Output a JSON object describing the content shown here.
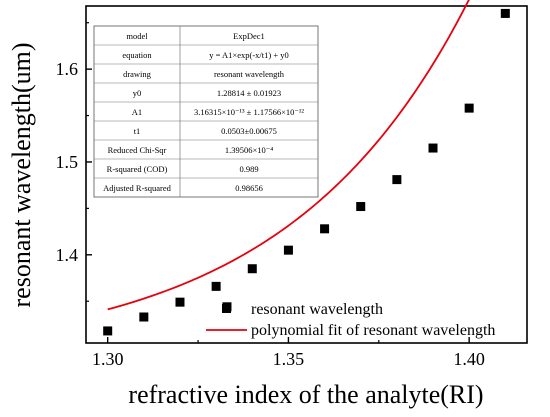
{
  "chart_data": {
    "type": "scatter",
    "xlabel": "refractive index of the analyte(RI)",
    "ylabel": "resonant wavelength(um)",
    "xlim": [
      1.294,
      1.416
    ],
    "ylim": [
      1.305,
      1.668
    ],
    "x_ticks": [
      "1.30",
      "1.35",
      "1.40"
    ],
    "y_ticks": [
      "1.4",
      "1.5",
      "1.6"
    ],
    "x_tick_values": [
      1.3,
      1.35,
      1.4
    ],
    "y_tick_values": [
      1.4,
      1.5,
      1.6
    ],
    "series": [
      {
        "name": "resonant wavelength",
        "kind": "scatter",
        "marker": "square",
        "color": "#000000",
        "x": [
          1.3,
          1.31,
          1.32,
          1.33,
          1.333,
          1.34,
          1.35,
          1.36,
          1.37,
          1.38,
          1.39,
          1.4,
          1.41
        ],
        "y": [
          1.318,
          1.333,
          1.349,
          1.366,
          1.344,
          1.385,
          1.405,
          1.428,
          1.452,
          1.481,
          1.515,
          1.558,
          1.66
        ]
      },
      {
        "name": "polynomial fit of resonant wavelength",
        "kind": "line",
        "color": "#e8000b",
        "model": {
          "y0": 1.28814,
          "A1": 3.16315e-13,
          "t1": 0.0503
        }
      }
    ],
    "legend_position": "bottom-right",
    "fit_table": {
      "rows": [
        {
          "label": "model",
          "value": "ExpDec1"
        },
        {
          "label": "equation",
          "value": "y = A1×exp(-x/t1) + y0"
        },
        {
          "label": "drawing",
          "value": "resonant wavelength"
        },
        {
          "label": "y0",
          "value": "1.28814 ± 0.01923"
        },
        {
          "label": "A1",
          "value": "3.16315×10⁻¹³ ± 1.17566×10⁻¹²"
        },
        {
          "label": "t1",
          "value": "0.0503±0.00675"
        },
        {
          "label": "Reduced Chi-Sqr",
          "value": "1.39506×10⁻⁴"
        },
        {
          "label": "R-squared (COD)",
          "value": "0.989"
        },
        {
          "label": "Adjusted R-squared",
          "value": "0.98656"
        }
      ]
    }
  }
}
